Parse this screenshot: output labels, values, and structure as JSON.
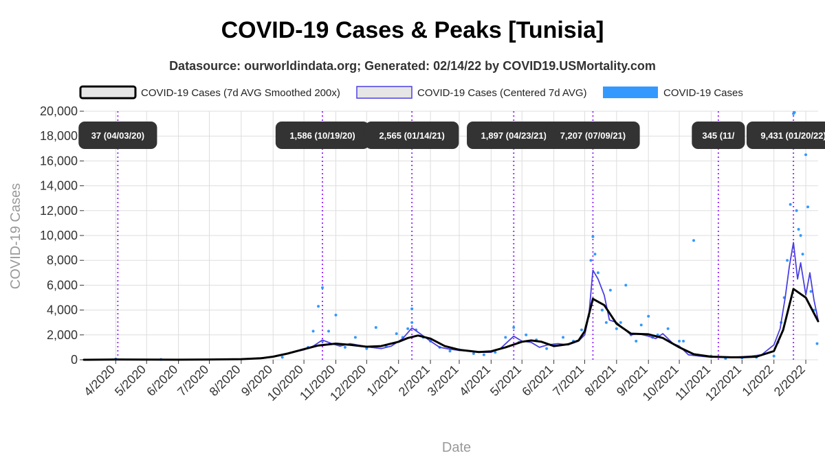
{
  "chart_data": {
    "type": "line",
    "title": "COVID-19 Cases & Peaks [Tunisia]",
    "subtitle": "Datasource: ourworldindata.org; Generated: 02/14/22 by COVID19.USMortality.com",
    "xlabel": "Date",
    "ylabel": "COVID-19 Cases",
    "ylim": [
      0,
      20000
    ],
    "xlim": [
      "2020-03-01",
      "2022-02-13"
    ],
    "y_ticks": [
      0,
      2000,
      4000,
      6000,
      8000,
      10000,
      12000,
      14000,
      16000,
      18000,
      20000
    ],
    "y_tick_labels": [
      "0",
      "2,000",
      "4,000",
      "6,000",
      "8,000",
      "10,000",
      "12,000",
      "14,000",
      "16,000",
      "18,000",
      "20,000"
    ],
    "x_ticks": [
      "2020-04-01",
      "2020-05-01",
      "2020-06-01",
      "2020-07-01",
      "2020-08-01",
      "2020-09-01",
      "2020-10-01",
      "2020-11-01",
      "2020-12-01",
      "2021-01-01",
      "2021-02-01",
      "2021-03-01",
      "2021-04-01",
      "2021-05-01",
      "2021-06-01",
      "2021-07-01",
      "2021-08-01",
      "2021-09-01",
      "2021-10-01",
      "2021-11-01",
      "2021-12-01",
      "2022-01-01",
      "2022-02-01"
    ],
    "x_tick_labels": [
      "4/2020",
      "5/2020",
      "6/2020",
      "7/2020",
      "8/2020",
      "9/2020",
      "10/2020",
      "11/2020",
      "12/2020",
      "1/2021",
      "2/2021",
      "3/2021",
      "4/2021",
      "5/2021",
      "6/2021",
      "7/2021",
      "8/2021",
      "9/2021",
      "10/2021",
      "11/2021",
      "12/2021",
      "1/2022",
      "2/2022"
    ],
    "grid": true,
    "legend_position": "top",
    "legend": [
      {
        "label": "COVID-19 Cases (7d AVG Smoothed 200x)",
        "color": "#000000",
        "fill": "#e6e6e6"
      },
      {
        "label": "COVID-19 Cases (Centered 7d AVG)",
        "color": "#4a3fe0",
        "fill": "#e6e6e6"
      },
      {
        "label": "COVID-19 Cases",
        "color": "#3399ff",
        "fill": "#3399ff"
      }
    ],
    "series": [
      {
        "name": "COVID-19 Cases (7d AVG Smoothed 200x)",
        "color": "#000000",
        "x": [
          "2020-03-01",
          "2020-04-01",
          "2020-05-01",
          "2020-06-01",
          "2020-07-01",
          "2020-08-01",
          "2020-08-20",
          "2020-09-01",
          "2020-09-15",
          "2020-10-01",
          "2020-10-15",
          "2020-11-01",
          "2020-11-15",
          "2020-12-01",
          "2020-12-15",
          "2021-01-01",
          "2021-01-10",
          "2021-01-20",
          "2021-02-01",
          "2021-02-15",
          "2021-03-01",
          "2021-03-20",
          "2021-04-01",
          "2021-04-15",
          "2021-05-01",
          "2021-05-10",
          "2021-05-20",
          "2021-06-01",
          "2021-06-15",
          "2021-06-25",
          "2021-07-01",
          "2021-07-09",
          "2021-07-20",
          "2021-08-01",
          "2021-08-15",
          "2021-09-01",
          "2021-09-15",
          "2021-10-01",
          "2021-10-15",
          "2021-11-01",
          "2021-11-20",
          "2021-12-01",
          "2021-12-15",
          "2022-01-01",
          "2022-01-10",
          "2022-01-20",
          "2022-02-01",
          "2022-02-13"
        ],
        "values": [
          0,
          20,
          10,
          5,
          20,
          50,
          120,
          250,
          500,
          850,
          1150,
          1300,
          1200,
          1050,
          1100,
          1450,
          1750,
          1950,
          1700,
          1100,
          800,
          620,
          680,
          1000,
          1450,
          1550,
          1450,
          1100,
          1250,
          1550,
          2300,
          4900,
          4400,
          2900,
          2100,
          2050,
          1750,
          1000,
          450,
          250,
          200,
          200,
          250,
          700,
          2400,
          5700,
          5000,
          3100
        ]
      },
      {
        "name": "COVID-19 Cases (Centered 7d AVG)",
        "color": "#4a3fe0",
        "x": [
          "2020-03-01",
          "2020-04-03",
          "2020-05-01",
          "2020-06-01",
          "2020-07-01",
          "2020-08-01",
          "2020-08-20",
          "2020-09-01",
          "2020-09-15",
          "2020-10-01",
          "2020-10-10",
          "2020-10-19",
          "2020-10-28",
          "2020-11-05",
          "2020-11-15",
          "2020-11-25",
          "2020-12-05",
          "2020-12-15",
          "2020-12-25",
          "2021-01-05",
          "2021-01-14",
          "2021-01-22",
          "2021-02-01",
          "2021-02-10",
          "2021-02-20",
          "2021-03-01",
          "2021-03-10",
          "2021-03-20",
          "2021-04-01",
          "2021-04-10",
          "2021-04-23",
          "2021-05-01",
          "2021-05-10",
          "2021-05-18",
          "2021-05-26",
          "2021-06-05",
          "2021-06-15",
          "2021-06-25",
          "2021-07-01",
          "2021-07-05",
          "2021-07-09",
          "2021-07-14",
          "2021-07-20",
          "2021-07-25",
          "2021-08-01",
          "2021-08-08",
          "2021-08-15",
          "2021-08-22",
          "2021-09-01",
          "2021-09-08",
          "2021-09-15",
          "2021-09-25",
          "2021-10-01",
          "2021-10-10",
          "2021-10-20",
          "2021-11-01",
          "2021-11-10",
          "2021-11-20",
          "2021-12-01",
          "2021-12-10",
          "2021-12-20",
          "2022-01-01",
          "2022-01-07",
          "2022-01-12",
          "2022-01-16",
          "2022-01-20",
          "2022-01-24",
          "2022-01-27",
          "2022-02-01",
          "2022-02-05",
          "2022-02-09",
          "2022-02-13"
        ],
        "values": [
          0,
          37,
          15,
          5,
          20,
          50,
          100,
          220,
          500,
          800,
          1100,
          1586,
          1300,
          1100,
          1300,
          1150,
          1000,
          900,
          1100,
          1700,
          2565,
          2100,
          1500,
          1000,
          850,
          750,
          700,
          600,
          600,
          900,
          1897,
          1500,
          1400,
          1000,
          1200,
          1300,
          1200,
          1500,
          2000,
          3500,
          7207,
          6500,
          5200,
          3200,
          3000,
          2500,
          2000,
          2100,
          1900,
          1700,
          2100,
          1300,
          1100,
          400,
          300,
          200,
          250,
          200,
          250,
          300,
          400,
          1200,
          2500,
          5000,
          7500,
          9431,
          6500,
          7800,
          5200,
          7000,
          4800,
          3200
        ]
      }
    ],
    "scatter": {
      "name": "COVID-19 Cases",
      "color": "#3399ff",
      "x": [
        "2020-04-01",
        "2020-05-15",
        "2020-09-10",
        "2020-10-05",
        "2020-10-10",
        "2020-10-15",
        "2020-10-19",
        "2020-10-19",
        "2020-10-25",
        "2020-11-01",
        "2020-11-05",
        "2020-11-10",
        "2020-11-20",
        "2020-12-01",
        "2020-12-10",
        "2020-12-20",
        "2020-12-30",
        "2021-01-05",
        "2021-01-10",
        "2021-01-14",
        "2021-01-14",
        "2021-01-18",
        "2021-01-25",
        "2021-02-01",
        "2021-02-10",
        "2021-02-20",
        "2021-03-01",
        "2021-03-15",
        "2021-03-25",
        "2021-04-05",
        "2021-04-15",
        "2021-04-23",
        "2021-04-28",
        "2021-05-05",
        "2021-05-15",
        "2021-05-25",
        "2021-06-01",
        "2021-06-10",
        "2021-06-20",
        "2021-06-28",
        "2021-07-05",
        "2021-07-07",
        "2021-07-09",
        "2021-07-11",
        "2021-07-14",
        "2021-07-18",
        "2021-07-22",
        "2021-07-26",
        "2021-08-01",
        "2021-08-05",
        "2021-08-10",
        "2021-08-15",
        "2021-08-20",
        "2021-08-25",
        "2021-09-01",
        "2021-09-05",
        "2021-09-10",
        "2021-09-20",
        "2021-10-01",
        "2021-10-05",
        "2021-10-15",
        "2021-11-01",
        "2021-11-15",
        "2021-12-01",
        "2021-12-15",
        "2022-01-01",
        "2022-01-05",
        "2022-01-08",
        "2022-01-11",
        "2022-01-14",
        "2022-01-17",
        "2022-01-20",
        "2022-01-21",
        "2022-01-23",
        "2022-01-25",
        "2022-01-27",
        "2022-01-29",
        "2022-02-01",
        "2022-02-03",
        "2022-02-06",
        "2022-02-09",
        "2022-02-12"
      ],
      "values": [
        60,
        30,
        200,
        1000,
        2300,
        4300,
        5800,
        1500,
        2300,
        3600,
        1200,
        1000,
        1800,
        900,
        2600,
        1100,
        2100,
        1800,
        2500,
        4100,
        3000,
        2400,
        1800,
        1500,
        1000,
        700,
        800,
        500,
        400,
        600,
        1800,
        2600,
        1400,
        2000,
        1600,
        900,
        1200,
        1800,
        1500,
        2400,
        3500,
        8000,
        9900,
        8500,
        7000,
        4000,
        3000,
        5600,
        2500,
        3000,
        6000,
        2000,
        1500,
        2800,
        3500,
        1800,
        2000,
        2500,
        1500,
        1500,
        9600,
        300,
        100,
        150,
        200,
        300,
        1400,
        3000,
        5000,
        8000,
        12500,
        19800,
        19900,
        12000,
        10500,
        10000,
        8500,
        16500,
        12300,
        5500,
        4000,
        1300
      ]
    },
    "peaks": [
      {
        "date": "2020-04-03",
        "value": 37,
        "label": "37 (04/03/20)"
      },
      {
        "date": "2020-10-19",
        "value": 1586,
        "label": "1,586 (10/19/20)"
      },
      {
        "date": "2021-01-14",
        "value": 2565,
        "label": "2,565 (01/14/21)"
      },
      {
        "date": "2021-04-23",
        "value": 1897,
        "label": "1,897 (04/23/21)"
      },
      {
        "date": "2021-07-09",
        "value": 7207,
        "label": "7,207 (07/09/21)"
      },
      {
        "date": "2021-11-08",
        "value": 345,
        "label": "345 (11/"
      },
      {
        "date": "2022-01-20",
        "value": 9431,
        "label": "9,431 (01/20/22)"
      }
    ],
    "peak_line_color": "#9933ff"
  }
}
